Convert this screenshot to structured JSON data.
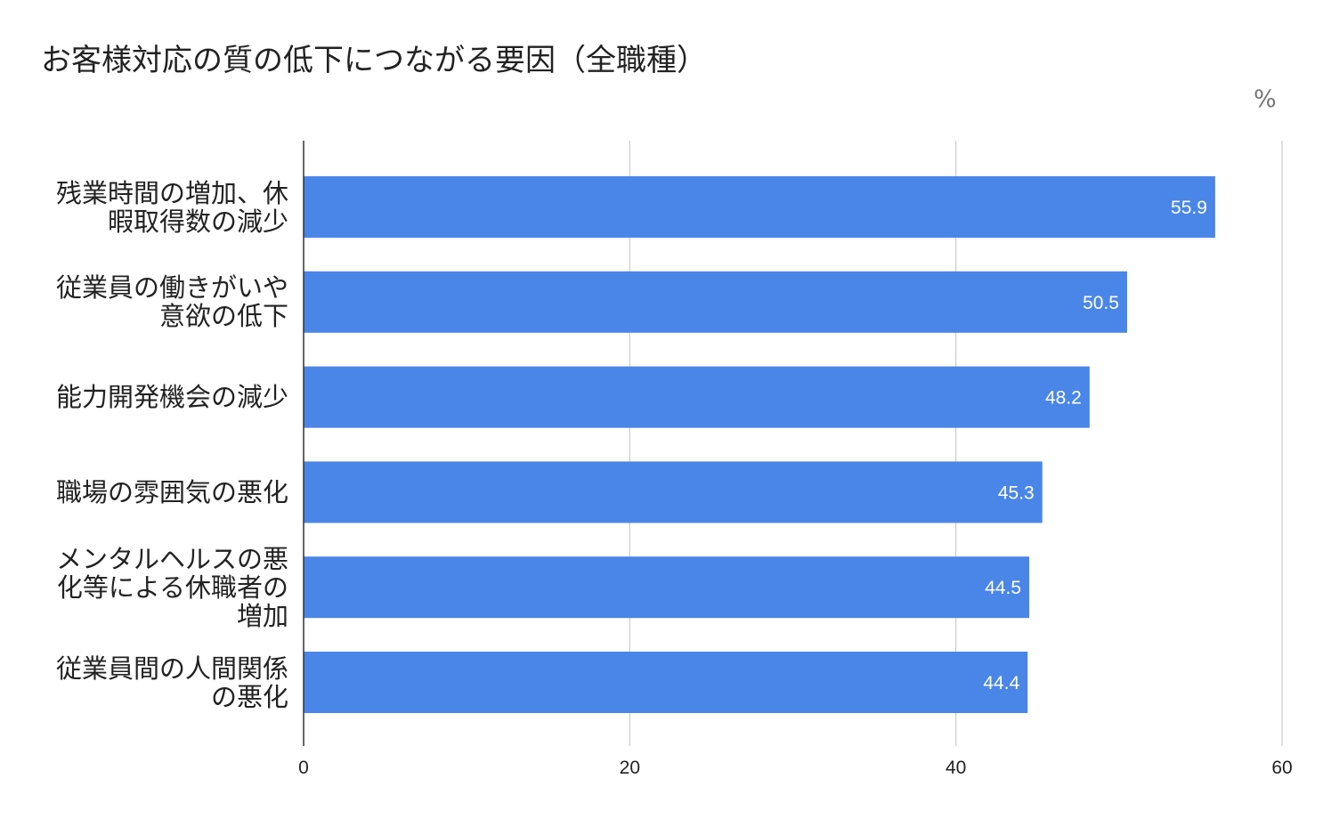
{
  "chart_data": {
    "type": "bar",
    "orientation": "horizontal",
    "title": "お客様対応の質の低下につながる要因（全職種）",
    "unit": "%",
    "categories": [
      "残業時間の増加、休暇取得数の減少",
      "従業員の働きがいや意欲の低下",
      "能力開発機会の減少",
      "職場の雰囲気の悪化",
      "メンタルヘルスの悪化等による休職者の増加",
      "従業員間の人間関係の悪化"
    ],
    "values": [
      55.9,
      50.5,
      48.2,
      45.3,
      44.5,
      44.4
    ],
    "xlim": [
      0,
      60
    ],
    "xticks": [
      0,
      20,
      40,
      60
    ],
    "grid": true,
    "data_labels": true,
    "bar_color": "#4a86e8",
    "label_color": "#ffffff"
  }
}
